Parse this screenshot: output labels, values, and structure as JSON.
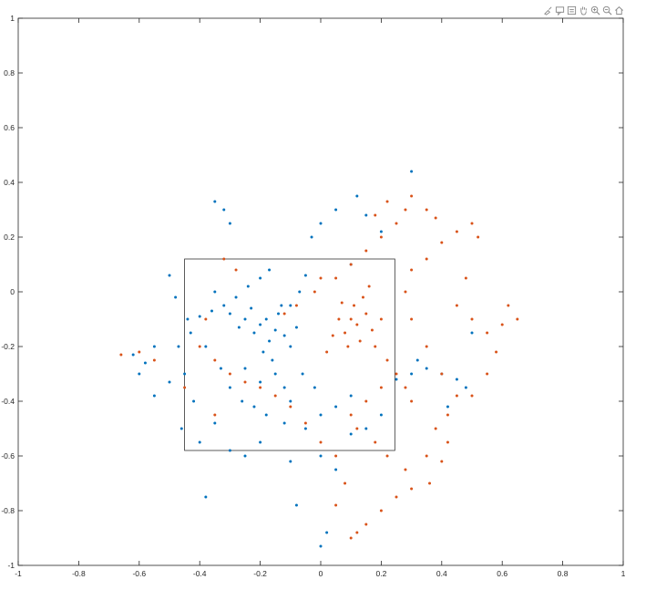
{
  "toolbar": {
    "icons": [
      "brush-icon",
      "datatip-icon",
      "export-icon",
      "pan-hand-icon",
      "zoom-in-icon",
      "zoom-out-icon",
      "home-icon"
    ]
  },
  "colors": {
    "series1": "#0072BD",
    "series2": "#D95319",
    "axis": "#262626",
    "box": "#333333"
  },
  "chart_data": {
    "type": "scatter",
    "title": "",
    "xlabel": "",
    "ylabel": "",
    "xlim": [
      -1,
      1
    ],
    "ylim": [
      -1,
      1
    ],
    "xticks": [
      "-1",
      "-0.8",
      "-0.6",
      "-0.4",
      "-0.2",
      "0",
      "0.2",
      "0.4",
      "0.6",
      "0.8",
      "1"
    ],
    "yticks": [
      "1",
      "0.8",
      "0.6",
      "0.4",
      "0.2",
      "0",
      "-0.2",
      "-0.4",
      "-0.6",
      "-0.8",
      "-1"
    ],
    "grid": false,
    "legend": "none",
    "rectangle": {
      "x": [
        -0.45,
        0.245
      ],
      "y": [
        -0.58,
        0.12
      ]
    },
    "series": [
      {
        "color": "#0072BD",
        "points": [
          [
            -0.2,
            -0.12
          ],
          [
            -0.18,
            -0.1
          ],
          [
            -0.15,
            -0.14
          ],
          [
            -0.12,
            -0.16
          ],
          [
            -0.17,
            -0.18
          ],
          [
            -0.22,
            -0.15
          ],
          [
            -0.25,
            -0.1
          ],
          [
            -0.14,
            -0.08
          ],
          [
            -0.1,
            -0.2
          ],
          [
            -0.19,
            -0.22
          ],
          [
            -0.23,
            -0.06
          ],
          [
            -0.13,
            -0.05
          ],
          [
            -0.08,
            -0.13
          ],
          [
            -0.16,
            -0.25
          ],
          [
            -0.27,
            -0.13
          ],
          [
            -0.3,
            -0.08
          ],
          [
            -0.28,
            -0.02
          ],
          [
            -0.24,
            0.02
          ],
          [
            -0.2,
            0.05
          ],
          [
            -0.17,
            0.08
          ],
          [
            -0.32,
            -0.05
          ],
          [
            -0.36,
            -0.07
          ],
          [
            -0.4,
            -0.09
          ],
          [
            -0.44,
            -0.1
          ],
          [
            -0.48,
            -0.02
          ],
          [
            -0.5,
            0.06
          ],
          [
            -0.35,
            0.0
          ],
          [
            -0.38,
            -0.2
          ],
          [
            -0.33,
            -0.28
          ],
          [
            -0.3,
            -0.35
          ],
          [
            -0.26,
            -0.4
          ],
          [
            -0.22,
            -0.42
          ],
          [
            -0.18,
            -0.45
          ],
          [
            -0.12,
            -0.48
          ],
          [
            -0.05,
            -0.5
          ],
          [
            0.0,
            -0.45
          ],
          [
            0.05,
            -0.42
          ],
          [
            0.1,
            -0.38
          ],
          [
            -0.06,
            -0.3
          ],
          [
            -0.02,
            -0.35
          ],
          [
            -0.45,
            -0.3
          ],
          [
            -0.5,
            -0.33
          ],
          [
            -0.55,
            -0.38
          ],
          [
            -0.6,
            -0.3
          ],
          [
            -0.42,
            -0.4
          ],
          [
            -0.46,
            -0.5
          ],
          [
            -0.4,
            -0.55
          ],
          [
            -0.35,
            -0.48
          ],
          [
            -0.3,
            -0.58
          ],
          [
            -0.25,
            -0.6
          ],
          [
            -0.2,
            -0.55
          ],
          [
            -0.1,
            -0.62
          ],
          [
            0.0,
            -0.6
          ],
          [
            0.05,
            -0.65
          ],
          [
            -0.38,
            -0.75
          ],
          [
            0.02,
            -0.88
          ],
          [
            0.0,
            -0.93
          ],
          [
            -0.08,
            -0.78
          ],
          [
            0.1,
            0.1
          ],
          [
            0.0,
            0.25
          ],
          [
            0.05,
            0.3
          ],
          [
            0.12,
            0.35
          ],
          [
            -0.03,
            0.2
          ],
          [
            -0.32,
            0.3
          ],
          [
            -0.35,
            0.33
          ],
          [
            -0.3,
            0.25
          ],
          [
            0.3,
            0.44
          ],
          [
            0.15,
            0.28
          ],
          [
            0.2,
            0.22
          ],
          [
            0.25,
            -0.32
          ],
          [
            0.3,
            -0.3
          ],
          [
            0.35,
            -0.28
          ],
          [
            0.4,
            -0.3
          ],
          [
            0.45,
            -0.32
          ],
          [
            0.5,
            -0.15
          ],
          [
            0.48,
            -0.35
          ],
          [
            0.42,
            -0.42
          ],
          [
            0.32,
            -0.25
          ],
          [
            -0.1,
            -0.05
          ],
          [
            -0.07,
            0.0
          ],
          [
            -0.05,
            0.06
          ],
          [
            -0.15,
            -0.3
          ],
          [
            -0.2,
            -0.33
          ],
          [
            -0.25,
            -0.28
          ],
          [
            -0.1,
            -0.4
          ],
          [
            -0.12,
            -0.35
          ],
          [
            0.15,
            -0.5
          ],
          [
            0.2,
            -0.45
          ],
          [
            0.1,
            -0.52
          ],
          [
            -0.55,
            -0.2
          ],
          [
            -0.58,
            -0.26
          ],
          [
            -0.62,
            -0.23
          ],
          [
            -0.43,
            -0.15
          ],
          [
            -0.47,
            -0.2
          ]
        ]
      },
      {
        "color": "#D95319",
        "points": [
          [
            0.1,
            -0.1
          ],
          [
            0.12,
            -0.12
          ],
          [
            0.08,
            -0.15
          ],
          [
            0.15,
            -0.08
          ],
          [
            0.13,
            -0.18
          ],
          [
            0.06,
            -0.1
          ],
          [
            0.11,
            -0.05
          ],
          [
            0.17,
            -0.14
          ],
          [
            0.09,
            -0.2
          ],
          [
            0.14,
            -0.02
          ],
          [
            0.04,
            -0.16
          ],
          [
            0.18,
            -0.2
          ],
          [
            0.07,
            -0.04
          ],
          [
            0.16,
            0.02
          ],
          [
            0.2,
            -0.1
          ],
          [
            0.02,
            -0.22
          ],
          [
            0.22,
            -0.25
          ],
          [
            0.25,
            -0.3
          ],
          [
            0.28,
            -0.35
          ],
          [
            0.3,
            -0.4
          ],
          [
            0.2,
            -0.35
          ],
          [
            0.15,
            -0.4
          ],
          [
            0.1,
            -0.45
          ],
          [
            0.12,
            -0.5
          ],
          [
            0.18,
            -0.55
          ],
          [
            0.22,
            -0.6
          ],
          [
            0.28,
            -0.65
          ],
          [
            0.35,
            -0.6
          ],
          [
            0.38,
            -0.5
          ],
          [
            0.42,
            -0.45
          ],
          [
            0.45,
            -0.38
          ],
          [
            0.4,
            -0.3
          ],
          [
            0.35,
            -0.2
          ],
          [
            0.3,
            -0.1
          ],
          [
            0.28,
            0.0
          ],
          [
            0.3,
            0.08
          ],
          [
            0.35,
            0.12
          ],
          [
            0.4,
            0.18
          ],
          [
            0.45,
            0.22
          ],
          [
            0.5,
            0.25
          ],
          [
            0.52,
            0.2
          ],
          [
            0.48,
            0.05
          ],
          [
            0.45,
            -0.05
          ],
          [
            0.5,
            -0.1
          ],
          [
            0.55,
            -0.15
          ],
          [
            0.6,
            -0.12
          ],
          [
            0.62,
            -0.05
          ],
          [
            0.65,
            -0.1
          ],
          [
            0.58,
            -0.22
          ],
          [
            0.55,
            -0.3
          ],
          [
            0.5,
            -0.38
          ],
          [
            0.42,
            -0.55
          ],
          [
            0.4,
            -0.62
          ],
          [
            0.36,
            -0.7
          ],
          [
            0.3,
            -0.72
          ],
          [
            0.25,
            -0.75
          ],
          [
            0.2,
            -0.8
          ],
          [
            0.15,
            -0.85
          ],
          [
            0.12,
            -0.88
          ],
          [
            0.1,
            -0.9
          ],
          [
            0.05,
            -0.78
          ],
          [
            0.08,
            -0.7
          ],
          [
            0.05,
            -0.6
          ],
          [
            0.0,
            -0.55
          ],
          [
            -0.05,
            -0.48
          ],
          [
            -0.1,
            -0.42
          ],
          [
            -0.15,
            -0.38
          ],
          [
            -0.2,
            -0.35
          ],
          [
            -0.25,
            -0.33
          ],
          [
            -0.3,
            -0.3
          ],
          [
            -0.35,
            -0.25
          ],
          [
            -0.4,
            -0.2
          ],
          [
            -0.45,
            -0.35
          ],
          [
            -0.35,
            -0.45
          ],
          [
            -0.38,
            -0.1
          ],
          [
            -0.32,
            0.12
          ],
          [
            -0.28,
            0.08
          ],
          [
            0.05,
            0.05
          ],
          [
            0.1,
            0.1
          ],
          [
            0.15,
            0.15
          ],
          [
            0.2,
            0.2
          ],
          [
            0.25,
            0.25
          ],
          [
            0.28,
            0.3
          ],
          [
            0.3,
            0.35
          ],
          [
            0.22,
            0.33
          ],
          [
            0.18,
            0.28
          ],
          [
            0.35,
            0.3
          ],
          [
            0.38,
            0.27
          ],
          [
            -0.02,
            0.0
          ],
          [
            0.0,
            0.05
          ],
          [
            -0.08,
            -0.05
          ],
          [
            -0.12,
            -0.08
          ],
          [
            -0.55,
            -0.25
          ],
          [
            -0.6,
            -0.22
          ],
          [
            -0.66,
            -0.23
          ]
        ]
      }
    ]
  }
}
